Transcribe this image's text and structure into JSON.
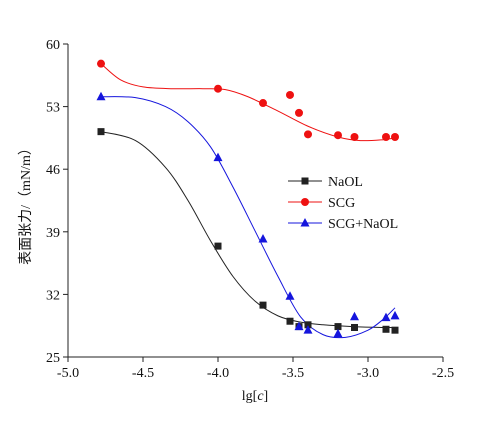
{
  "chart_data": {
    "type": "scatter",
    "title": "",
    "xlabel_prefix": "lg[",
    "xlabel_var": "c",
    "xlabel_suffix": "]",
    "ylabel": "表面张力/（mN/m）",
    "xlim": [
      -5.0,
      -2.5
    ],
    "ylim": [
      25,
      60
    ],
    "xticks": [
      -5.0,
      -4.5,
      -4.0,
      -3.5,
      -3.0,
      -2.5
    ],
    "xtick_labels": [
      "-5.0",
      "-4.5",
      "-4.0",
      "-3.5",
      "-3.0",
      "-2.5"
    ],
    "yticks": [
      25,
      32,
      39,
      46,
      53,
      60
    ],
    "ytick_labels": [
      "25",
      "32",
      "39",
      "46",
      "53",
      "60"
    ],
    "grid": false,
    "legend_position": "right",
    "series": [
      {
        "name": "NaOL",
        "color": "#222222",
        "marker": "square",
        "points": [
          [
            -4.78,
            50.2
          ],
          [
            -4.0,
            37.4
          ],
          [
            -3.7,
            30.8
          ],
          [
            -3.52,
            29.0
          ],
          [
            -3.46,
            28.4
          ],
          [
            -3.4,
            28.6
          ],
          [
            -3.2,
            28.4
          ],
          [
            -3.09,
            28.3
          ],
          [
            -2.88,
            28.1
          ],
          [
            -2.82,
            28.0
          ]
        ],
        "curve": [
          [
            -4.78,
            50.2
          ],
          [
            -4.55,
            49.2
          ],
          [
            -4.35,
            46.2
          ],
          [
            -4.2,
            42.5
          ],
          [
            -4.05,
            38.0
          ],
          [
            -3.9,
            34.0
          ],
          [
            -3.75,
            31.2
          ],
          [
            -3.6,
            29.6
          ],
          [
            -3.45,
            28.9
          ],
          [
            -3.3,
            28.6
          ],
          [
            -3.1,
            28.4
          ],
          [
            -2.9,
            28.3
          ],
          [
            -2.82,
            28.3
          ]
        ]
      },
      {
        "name": "SCG",
        "color": "#ee1111",
        "marker": "circle",
        "points": [
          [
            -4.78,
            57.8
          ],
          [
            -4.0,
            55.0
          ],
          [
            -3.7,
            53.4
          ],
          [
            -3.52,
            54.3
          ],
          [
            -3.46,
            52.3
          ],
          [
            -3.4,
            49.9
          ],
          [
            -3.2,
            49.8
          ],
          [
            -3.09,
            49.6
          ],
          [
            -2.88,
            49.6
          ],
          [
            -2.82,
            49.6
          ]
        ],
        "curve": [
          [
            -4.78,
            57.8
          ],
          [
            -4.65,
            56.0
          ],
          [
            -4.5,
            55.2
          ],
          [
            -4.3,
            55.0
          ],
          [
            -4.1,
            55.0
          ],
          [
            -3.95,
            54.9
          ],
          [
            -3.8,
            54.1
          ],
          [
            -3.6,
            52.5
          ],
          [
            -3.4,
            50.8
          ],
          [
            -3.2,
            49.6
          ],
          [
            -3.05,
            49.2
          ],
          [
            -2.9,
            49.3
          ],
          [
            -2.82,
            49.5
          ]
        ]
      },
      {
        "name": "SCG+NaOL",
        "color": "#1515dd",
        "marker": "triangle",
        "points": [
          [
            -4.78,
            54.1
          ],
          [
            -4.0,
            47.3
          ],
          [
            -3.7,
            38.2
          ],
          [
            -3.52,
            31.8
          ],
          [
            -3.46,
            28.4
          ],
          [
            -3.4,
            28.0
          ],
          [
            -3.2,
            27.6
          ],
          [
            -3.09,
            29.5
          ],
          [
            -2.88,
            29.4
          ],
          [
            -2.82,
            29.6
          ]
        ],
        "curve": [
          [
            -4.78,
            54.1
          ],
          [
            -4.55,
            54.0
          ],
          [
            -4.35,
            53.0
          ],
          [
            -4.2,
            51.3
          ],
          [
            -4.05,
            48.5
          ],
          [
            -3.9,
            44.0
          ],
          [
            -3.75,
            39.0
          ],
          [
            -3.6,
            34.0
          ],
          [
            -3.45,
            29.5
          ],
          [
            -3.3,
            27.5
          ],
          [
            -3.15,
            27.2
          ],
          [
            -3.0,
            28.0
          ],
          [
            -2.9,
            29.2
          ],
          [
            -2.82,
            30.5
          ]
        ]
      }
    ]
  }
}
